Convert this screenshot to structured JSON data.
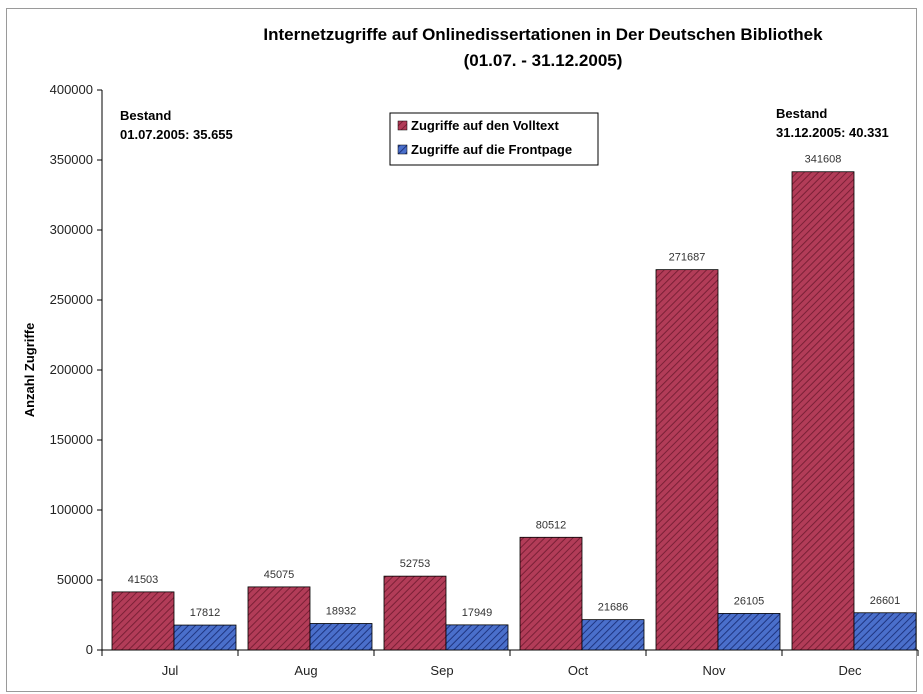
{
  "chart_data": {
    "type": "bar",
    "title": "Internetzugriffe auf Onlinedissertationen in Der Deutschen Bibliothek",
    "subtitle": "(01.07. - 31.12.2005)",
    "ylabel": "Anzahl Zugriffe",
    "xlabel": "",
    "ylim": [
      0,
      400000
    ],
    "yticks": [
      "0",
      "50000",
      "100000",
      "150000",
      "200000",
      "250000",
      "300000",
      "350000",
      "400000"
    ],
    "grid": false,
    "legend_position": "top-center",
    "categories": [
      "Jul",
      "Aug",
      "Sep",
      "Oct",
      "Nov",
      "Dec"
    ],
    "series": [
      {
        "name": "Zugriffe auf den Volltext",
        "values": [
          41503,
          45075,
          52753,
          80512,
          271687,
          341608
        ],
        "color": "#a8354f",
        "labels": [
          "41503",
          "45075",
          "52753",
          "80512",
          "271687",
          "341608"
        ]
      },
      {
        "name": "Zugriffe auf die Frontpage",
        "values": [
          17812,
          18932,
          17949,
          21686,
          26105,
          26601
        ],
        "color": "#3b5fb8",
        "labels": [
          "17812",
          "18932",
          "17949",
          "21686",
          "26105",
          "26601"
        ]
      }
    ],
    "annotations": [
      {
        "line1": "Bestand",
        "line2": "01.07.2005: 35.655"
      },
      {
        "line1": "Bestand",
        "line2": "31.12.2005: 40.331"
      }
    ]
  }
}
